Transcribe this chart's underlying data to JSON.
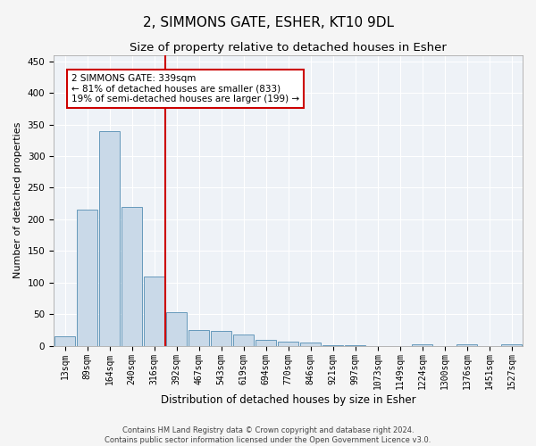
{
  "title": "2, SIMMONS GATE, ESHER, KT10 9DL",
  "subtitle": "Size of property relative to detached houses in Esher",
  "xlabel": "Distribution of detached houses by size in Esher",
  "ylabel": "Number of detached properties",
  "footer_line1": "Contains HM Land Registry data © Crown copyright and database right 2024.",
  "footer_line2": "Contains public sector information licensed under the Open Government Licence v3.0.",
  "categories": [
    "13sqm",
    "89sqm",
    "164sqm",
    "240sqm",
    "316sqm",
    "392sqm",
    "467sqm",
    "543sqm",
    "619sqm",
    "694sqm",
    "770sqm",
    "846sqm",
    "921sqm",
    "997sqm",
    "1073sqm",
    "1149sqm",
    "1224sqm",
    "1300sqm",
    "1376sqm",
    "1451sqm",
    "1527sqm"
  ],
  "values": [
    15,
    215,
    340,
    220,
    110,
    53,
    25,
    23,
    18,
    9,
    7,
    5,
    1,
    1,
    0,
    0,
    3,
    0,
    2,
    0,
    2
  ],
  "bar_color": "#c9d9e8",
  "bar_edge_color": "#6699bb",
  "vline_x": 4.5,
  "vline_color": "#cc0000",
  "annotation_line1": "2 SIMMONS GATE: 339sqm",
  "annotation_line2": "← 81% of detached houses are smaller (833)",
  "annotation_line3": "19% of semi-detached houses are larger (199) →",
  "annotation_box_color": "#cc0000",
  "ylim": [
    0,
    460
  ],
  "yticks": [
    0,
    50,
    100,
    150,
    200,
    250,
    300,
    350,
    400,
    450
  ],
  "bar_color_highlight": "#c9d9e8",
  "bg_color": "#eef2f7",
  "grid_color": "#ffffff",
  "title_fontsize": 11,
  "subtitle_fontsize": 9.5,
  "axis_label_fontsize": 8.5,
  "tick_fontsize": 7,
  "footer_fontsize": 6,
  "ylabel_fontsize": 8
}
